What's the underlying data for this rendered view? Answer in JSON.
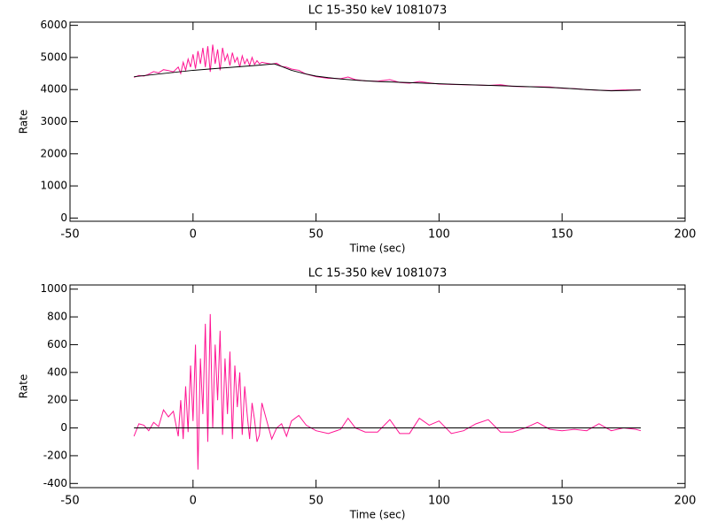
{
  "chart_data": [
    {
      "type": "line",
      "title": "LC 15-350 keV  1081073",
      "xlabel": "Time (sec)",
      "ylabel": "Rate",
      "xlim": [
        -50,
        200
      ],
      "xticks": [
        -50,
        0,
        50,
        100,
        150,
        200
      ],
      "ylim": [
        -100,
        6100
      ],
      "yticks": [
        0,
        1000,
        2000,
        3000,
        4000,
        5000,
        6000
      ],
      "series": [
        {
          "color": "#ff1493",
          "x": [
            -24,
            -22,
            -20,
            -18,
            -16,
            -14,
            -12,
            -10,
            -8,
            -6,
            -5,
            -4,
            -3,
            -2,
            -1,
            0,
            1,
            2,
            3,
            4,
            5,
            6,
            7,
            8,
            9,
            10,
            11,
            12,
            13,
            14,
            15,
            16,
            17,
            18,
            19,
            20,
            21,
            22,
            23,
            24,
            25,
            26,
            27,
            28,
            30,
            32,
            34,
            36,
            38,
            40,
            43,
            46,
            50,
            55,
            60,
            63,
            66,
            70,
            75,
            80,
            84,
            88,
            92,
            96,
            100,
            105,
            110,
            115,
            120,
            125,
            130,
            135,
            140,
            145,
            150,
            155,
            160,
            165,
            170,
            175,
            180,
            182
          ],
          "values": [
            4380,
            4440,
            4420,
            4480,
            4560,
            4520,
            4620,
            4590,
            4550,
            4700,
            4500,
            4850,
            4600,
            4950,
            4700,
            5100,
            4650,
            5200,
            4800,
            5300,
            4700,
            5350,
            4550,
            5400,
            4800,
            5250,
            4600,
            5300,
            4900,
            5100,
            4750,
            5150,
            4850,
            5000,
            4700,
            5050,
            4800,
            4950,
            4750,
            5000,
            4780,
            4900,
            4800,
            4850,
            4820,
            4790,
            4820,
            4720,
            4700,
            4640,
            4600,
            4480,
            4400,
            4350,
            4340,
            4390,
            4310,
            4270,
            4260,
            4310,
            4220,
            4200,
            4250,
            4210,
            4170,
            4160,
            4150,
            4140,
            4130,
            4150,
            4100,
            4090,
            4090,
            4080,
            4040,
            4030,
            4000,
            3980,
            3970,
            3990,
            3990,
            3985
          ]
        },
        {
          "color": "#000000",
          "x": [
            -24,
            -12,
            0,
            10,
            20,
            27,
            33,
            36,
            40,
            45,
            50,
            55,
            60,
            67,
            75,
            87,
            100,
            112,
            125,
            137,
            150,
            160,
            170,
            176,
            182
          ],
          "values": [
            4400,
            4500,
            4600,
            4660,
            4720,
            4760,
            4800,
            4720,
            4600,
            4500,
            4420,
            4370,
            4330,
            4290,
            4250,
            4220,
            4180,
            4150,
            4120,
            4090,
            4050,
            4000,
            3960,
            3970,
            3990
          ]
        }
      ]
    },
    {
      "type": "line",
      "title": "LC 15-350 keV  1081073",
      "xlabel": "Time (sec)",
      "ylabel": "Rate",
      "xlim": [
        -50,
        200
      ],
      "xticks": [
        -50,
        0,
        50,
        100,
        150,
        200
      ],
      "ylim": [
        -430,
        1030
      ],
      "yticks": [
        -400,
        -200,
        0,
        200,
        400,
        600,
        800,
        1000
      ],
      "series": [
        {
          "color": "#ff1493",
          "x": [
            -24,
            -22,
            -20,
            -18,
            -16,
            -14,
            -12,
            -10,
            -8,
            -6,
            -5,
            -4,
            -3,
            -2,
            -1,
            0,
            1,
            2,
            3,
            4,
            5,
            6,
            7,
            8,
            9,
            10,
            11,
            12,
            13,
            14,
            15,
            16,
            17,
            18,
            19,
            20,
            21,
            22,
            23,
            24,
            25,
            26,
            27,
            28,
            30,
            32,
            34,
            36,
            38,
            40,
            43,
            46,
            50,
            55,
            60,
            63,
            66,
            70,
            75,
            80,
            84,
            88,
            92,
            96,
            100,
            105,
            110,
            115,
            120,
            125,
            130,
            135,
            140,
            145,
            150,
            155,
            160,
            165,
            170,
            175,
            180,
            182
          ],
          "values": [
            -60,
            30,
            20,
            -20,
            40,
            10,
            130,
            80,
            120,
            -60,
            200,
            -80,
            300,
            -30,
            450,
            50,
            600,
            -300,
            500,
            100,
            750,
            -100,
            820,
            0,
            600,
            200,
            700,
            -50,
            500,
            100,
            550,
            -80,
            450,
            150,
            400,
            -50,
            300,
            100,
            -80,
            180,
            60,
            -100,
            -50,
            180,
            50,
            -80,
            0,
            30,
            -60,
            50,
            90,
            20,
            -20,
            -40,
            -10,
            70,
            0,
            -30,
            -30,
            60,
            -40,
            -40,
            70,
            20,
            50,
            -40,
            -20,
            30,
            60,
            -30,
            -30,
            0,
            40,
            -10,
            -20,
            -10,
            -20,
            30,
            -20,
            0,
            -10,
            -20
          ]
        },
        {
          "color": "#000000",
          "x": [
            -24,
            182
          ],
          "values": [
            0,
            0
          ]
        }
      ]
    }
  ]
}
